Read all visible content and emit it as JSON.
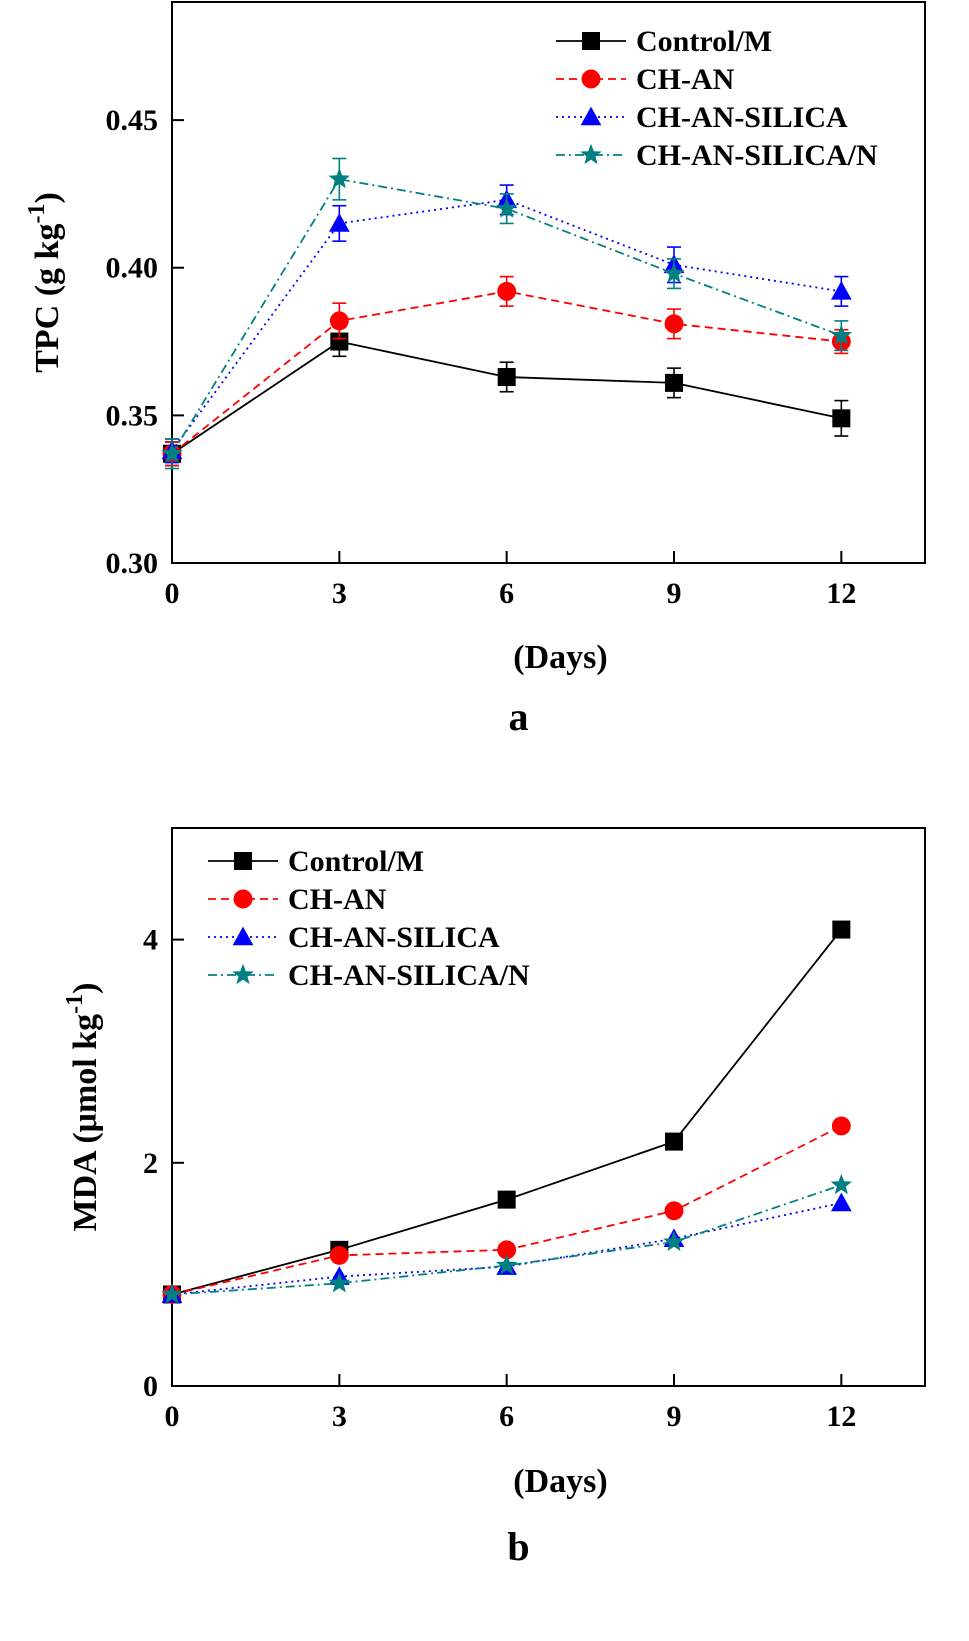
{
  "figure": {
    "panels": [
      "a",
      "b"
    ]
  },
  "chart_data": [
    {
      "type": "line",
      "panel_label": "a",
      "title": "",
      "xlabel": "(Days)",
      "ylabel": "TPC  (g kg",
      "ylabel_sup": "-1",
      "ylabel_close": ")",
      "x": [
        0,
        3,
        6,
        9,
        12
      ],
      "xlim": [
        0,
        13.5
      ],
      "ylim": [
        0.3,
        0.49
      ],
      "xticks": [
        0,
        3,
        6,
        9,
        12
      ],
      "yticks": [
        0.3,
        0.35,
        0.4,
        0.45
      ],
      "ytick_labels": [
        "0.30",
        "0.35",
        "0.40",
        "0.45"
      ],
      "legend_position": "top-right",
      "series": [
        {
          "name": "Control/M",
          "color": "#000000",
          "marker": "square",
          "dash": "solid",
          "values": [
            0.337,
            0.375,
            0.363,
            0.361,
            0.349
          ],
          "errors": [
            0.004,
            0.005,
            0.005,
            0.005,
            0.006
          ]
        },
        {
          "name": "CH-AN",
          "color": "#ff0000",
          "marker": "circle",
          "dash": "dash",
          "values": [
            0.337,
            0.382,
            0.392,
            0.381,
            0.375
          ],
          "errors": [
            0.004,
            0.006,
            0.005,
            0.005,
            0.004
          ]
        },
        {
          "name": "CH-AN-SILICA",
          "color": "#0000ff",
          "marker": "triangle",
          "dash": "dot",
          "values": [
            0.338,
            0.415,
            0.423,
            0.401,
            0.392
          ],
          "errors": [
            0.004,
            0.006,
            0.005,
            0.006,
            0.005
          ]
        },
        {
          "name": "CH-AN-SILICA/N",
          "color": "#008080",
          "marker": "star",
          "dash": "dashdot",
          "values": [
            0.337,
            0.43,
            0.42,
            0.398,
            0.377
          ],
          "errors": [
            0.005,
            0.007,
            0.005,
            0.005,
            0.005
          ]
        }
      ]
    },
    {
      "type": "line",
      "panel_label": "b",
      "title": "",
      "xlabel": "(Days)",
      "ylabel": "MDA  (μmol kg",
      "ylabel_sup": "-1",
      "ylabel_close": ")",
      "x": [
        0,
        3,
        6,
        9,
        12
      ],
      "xlim": [
        0,
        13.5
      ],
      "ylim": [
        0,
        5
      ],
      "xticks": [
        0,
        3,
        6,
        9,
        12
      ],
      "yticks": [
        0,
        2,
        4
      ],
      "ytick_labels": [
        "0",
        "2",
        "4"
      ],
      "legend_position": "top-left",
      "series": [
        {
          "name": "Control/M",
          "color": "#000000",
          "marker": "square",
          "dash": "solid",
          "values": [
            0.82,
            1.22,
            1.67,
            2.19,
            4.09
          ]
        },
        {
          "name": "CH-AN",
          "color": "#ff0000",
          "marker": "circle",
          "dash": "dash",
          "values": [
            0.82,
            1.17,
            1.22,
            1.57,
            2.33
          ]
        },
        {
          "name": "CH-AN-SILICA",
          "color": "#0000ff",
          "marker": "triangle",
          "dash": "dot",
          "values": [
            0.82,
            0.98,
            1.07,
            1.32,
            1.64
          ]
        },
        {
          "name": "CH-AN-SILICA/N",
          "color": "#008080",
          "marker": "star",
          "dash": "dashdot",
          "values": [
            0.82,
            0.92,
            1.08,
            1.29,
            1.8
          ]
        }
      ]
    }
  ]
}
